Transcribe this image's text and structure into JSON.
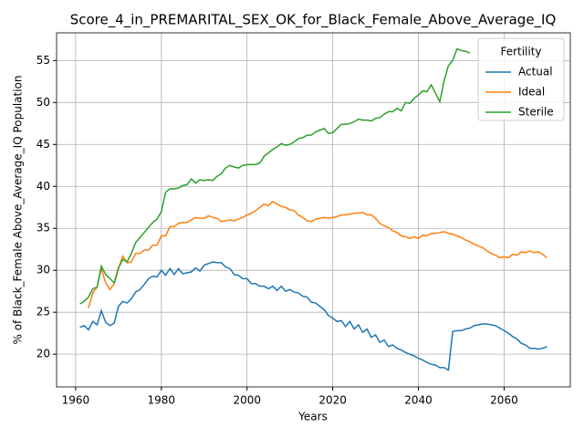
{
  "chart_data": {
    "type": "line",
    "title": "Score_4_in_PREMARITAL_SEX_OK_for_Black_Female_Above_Average_IQ",
    "x_label": "Years",
    "y_label": "% of Black_Female Above_Average_IQ Population",
    "legend_title": "Fertility",
    "legend_position": "upper right",
    "grid": true,
    "xlim": [
      1955.55,
      2075.45
    ],
    "ylim": [
      16.1,
      58.3
    ],
    "xticks": [
      1960,
      1980,
      2000,
      2020,
      2040,
      2060
    ],
    "yticks": [
      20,
      25,
      30,
      35,
      40,
      45,
      50,
      55
    ],
    "x": [
      1961,
      1962,
      1963,
      1964,
      1965,
      1966,
      1967,
      1968,
      1969,
      1970,
      1971,
      1972,
      1973,
      1974,
      1975,
      1976,
      1977,
      1978,
      1979,
      1980,
      1981,
      1982,
      1983,
      1984,
      1985,
      1986,
      1987,
      1988,
      1989,
      1990,
      1991,
      1992,
      1993,
      1994,
      1995,
      1996,
      1997,
      1998,
      1999,
      2000,
      2001,
      2002,
      2003,
      2004,
      2005,
      2006,
      2007,
      2008,
      2009,
      2010,
      2011,
      2012,
      2013,
      2014,
      2015,
      2016,
      2017,
      2018,
      2019,
      2020,
      2021,
      2022,
      2023,
      2024,
      2025,
      2026,
      2027,
      2028,
      2029,
      2030,
      2031,
      2032,
      2033,
      2034,
      2035,
      2036,
      2037,
      2038,
      2039,
      2040,
      2041,
      2042,
      2043,
      2044,
      2045,
      2046,
      2047,
      2048,
      2049,
      2050,
      2051,
      2052,
      2053,
      2054,
      2055,
      2056,
      2057,
      2058,
      2059,
      2060,
      2061,
      2062,
      2063,
      2064,
      2065,
      2066,
      2067,
      2068,
      2069,
      2070
    ],
    "series": [
      {
        "name": "Actual",
        "color": "#1f77b4",
        "values": [
          23.2,
          23.4,
          22.9,
          23.9,
          23.5,
          25.2,
          23.8,
          23.4,
          23.7,
          25.7,
          26.3,
          26.1,
          26.6,
          27.4,
          27.7,
          28.3,
          29.0,
          29.3,
          29.2,
          30.0,
          29.4,
          30.2,
          29.5,
          30.2,
          29.6,
          29.7,
          29.8,
          30.3,
          29.9,
          30.6,
          30.8,
          31.0,
          30.9,
          30.9,
          30.4,
          30.2,
          29.5,
          29.4,
          29.0,
          29.0,
          28.4,
          28.4,
          28.1,
          28.1,
          27.8,
          28.1,
          27.6,
          28.1,
          27.5,
          27.7,
          27.4,
          27.3,
          26.9,
          26.8,
          26.2,
          26.1,
          25.7,
          25.3,
          24.6,
          24.3,
          23.9,
          24.0,
          23.3,
          23.9,
          23.0,
          23.5,
          22.6,
          23.0,
          22.0,
          22.3,
          21.4,
          21.7,
          20.9,
          21.1,
          20.7,
          20.5,
          20.2,
          20.0,
          19.8,
          19.5,
          19.3,
          19.0,
          18.8,
          18.7,
          18.4,
          18.4,
          18.1,
          22.7,
          22.8,
          22.8,
          23.0,
          23.1,
          23.4,
          23.5,
          23.6,
          23.6,
          23.5,
          23.4,
          23.1,
          22.8,
          22.5,
          22.1,
          21.8,
          21.3,
          21.1,
          20.7,
          20.7,
          20.6,
          20.7,
          20.9
        ]
      },
      {
        "name": "Ideal",
        "color": "#ff7f0e",
        "values": [
          null,
          null,
          25.5,
          27.3,
          28.0,
          30.2,
          28.5,
          27.7,
          28.4,
          30.2,
          31.7,
          30.9,
          31.0,
          32.0,
          32.0,
          32.4,
          32.4,
          33.0,
          33.0,
          34.1,
          34.1,
          35.2,
          35.2,
          35.6,
          35.7,
          35.7,
          36.0,
          36.3,
          36.2,
          36.2,
          36.5,
          36.3,
          36.2,
          35.8,
          35.9,
          36.0,
          35.9,
          36.1,
          36.3,
          36.6,
          36.8,
          37.1,
          37.5,
          37.9,
          37.7,
          38.2,
          37.9,
          37.6,
          37.5,
          37.2,
          37.1,
          36.6,
          36.3,
          35.9,
          35.8,
          36.1,
          36.2,
          36.3,
          36.2,
          36.3,
          36.4,
          36.6,
          36.6,
          36.7,
          36.8,
          36.8,
          36.9,
          36.6,
          36.6,
          36.2,
          35.6,
          35.3,
          35.1,
          34.7,
          34.5,
          34.1,
          34.0,
          33.8,
          34.0,
          33.8,
          34.2,
          34.1,
          34.4,
          34.4,
          34.5,
          34.6,
          34.4,
          34.3,
          34.1,
          33.9,
          33.6,
          33.4,
          33.1,
          32.9,
          32.7,
          32.3,
          32.0,
          31.8,
          31.5,
          31.6,
          31.5,
          31.9,
          31.8,
          32.2,
          32.1,
          32.3,
          32.1,
          32.2,
          31.9,
          31.5
        ]
      },
      {
        "name": "Sterile",
        "color": "#2ca02c",
        "values": [
          26.0,
          26.3,
          26.8,
          27.8,
          28.0,
          30.5,
          29.5,
          29.0,
          28.5,
          30.3,
          31.3,
          31.0,
          32.0,
          33.3,
          33.9,
          34.5,
          35.1,
          35.7,
          36.1,
          37.0,
          39.3,
          39.7,
          39.7,
          39.8,
          40.1,
          40.2,
          40.9,
          40.4,
          40.8,
          40.7,
          40.8,
          40.7,
          41.2,
          41.5,
          42.2,
          42.5,
          42.3,
          42.2,
          42.5,
          42.6,
          42.6,
          42.6,
          42.8,
          43.6,
          44.0,
          44.4,
          44.7,
          45.1,
          44.9,
          45.0,
          45.3,
          45.7,
          45.8,
          46.1,
          46.1,
          46.5,
          46.7,
          46.9,
          46.3,
          46.4,
          46.9,
          47.4,
          47.4,
          47.5,
          47.7,
          48.0,
          47.9,
          47.9,
          47.8,
          48.1,
          48.2,
          48.6,
          48.9,
          48.9,
          49.3,
          49.0,
          50.0,
          49.9,
          50.5,
          50.9,
          51.4,
          51.3,
          52.1,
          51.1,
          50.1,
          52.6,
          54.4,
          55.0,
          56.4,
          56.2,
          56.1,
          55.9,
          null,
          null,
          null,
          null,
          null,
          null,
          null,
          null,
          null,
          null,
          null,
          null,
          null,
          null,
          null,
          null,
          null,
          null
        ]
      }
    ]
  }
}
